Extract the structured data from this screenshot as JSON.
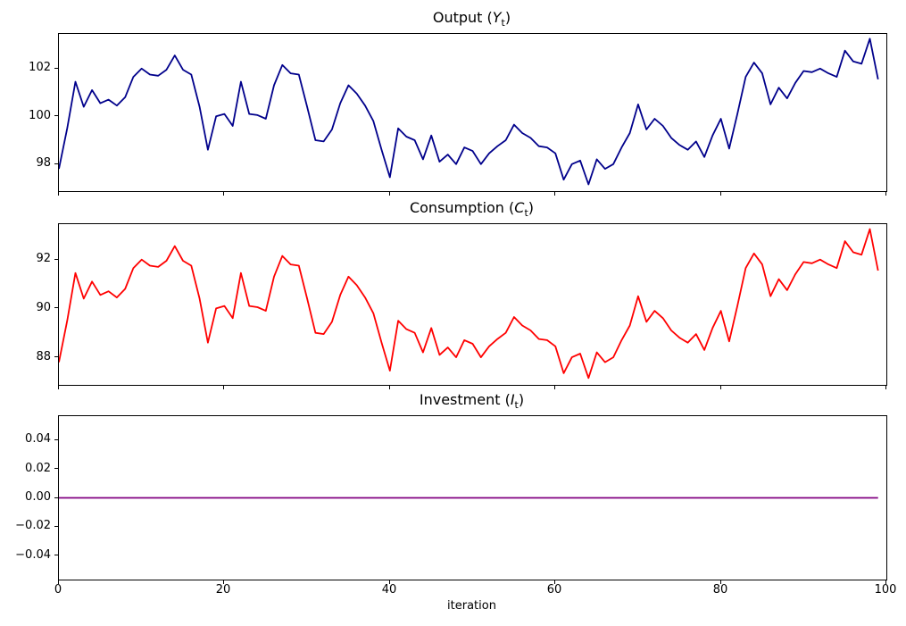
{
  "figure": {
    "background": "#ffffff",
    "xlabel": "iteration",
    "xlim": [
      0,
      100
    ],
    "x_ticks": [
      {
        "value": 0,
        "label": "0"
      },
      {
        "value": 20,
        "label": "20"
      },
      {
        "value": 40,
        "label": "40"
      },
      {
        "value": 60,
        "label": "60"
      },
      {
        "value": 80,
        "label": "80"
      },
      {
        "value": 100,
        "label": "100"
      }
    ],
    "grid": false,
    "legend": "none"
  },
  "chart_data": [
    {
      "id": "output",
      "type": "line",
      "title_prefix": "Output (",
      "title_symbol": "Y",
      "title_subscript": "t",
      "title_suffix": ")",
      "color": "#00008b",
      "x_start": 0,
      "x_step": 1,
      "ylim": [
        96.87,
        103.45
      ],
      "y_ticks": [
        {
          "value": 98,
          "label": "98"
        },
        {
          "value": 100,
          "label": "100"
        },
        {
          "value": 102,
          "label": "102"
        }
      ],
      "values": [
        97.8,
        99.5,
        101.45,
        100.4,
        101.1,
        100.55,
        100.7,
        100.45,
        100.8,
        101.65,
        102.0,
        101.75,
        101.7,
        101.95,
        102.55,
        101.95,
        101.75,
        100.4,
        98.6,
        100.0,
        100.1,
        99.6,
        101.45,
        100.1,
        100.05,
        99.9,
        101.3,
        102.15,
        101.8,
        101.75,
        100.4,
        99.0,
        98.95,
        99.45,
        100.55,
        101.3,
        100.95,
        100.45,
        99.8,
        98.6,
        97.45,
        99.5,
        99.15,
        99.0,
        98.2,
        99.2,
        98.1,
        98.4,
        98.0,
        98.7,
        98.55,
        98.0,
        98.45,
        98.75,
        99.0,
        99.65,
        99.3,
        99.1,
        98.75,
        98.7,
        98.45,
        97.35,
        98.0,
        98.15,
        97.15,
        98.2,
        97.8,
        98.0,
        98.7,
        99.3,
        100.5,
        99.45,
        99.9,
        99.6,
        99.1,
        98.8,
        98.6,
        98.95,
        98.3,
        99.2,
        99.9,
        98.65,
        100.1,
        101.65,
        102.25,
        101.8,
        100.5,
        101.2,
        100.75,
        101.4,
        101.9,
        101.85,
        102.0,
        101.8,
        101.65,
        102.75,
        102.3,
        102.2,
        103.25,
        101.55
      ]
    },
    {
      "id": "consumption",
      "type": "line",
      "title_prefix": "Consumption (",
      "title_symbol": "C",
      "title_subscript": "t",
      "title_suffix": ")",
      "color": "#ff0000",
      "x_start": 0,
      "x_step": 1,
      "ylim": [
        86.87,
        93.45
      ],
      "y_ticks": [
        {
          "value": 88,
          "label": "88"
        },
        {
          "value": 90,
          "label": "90"
        },
        {
          "value": 92,
          "label": "92"
        }
      ],
      "values": [
        87.8,
        89.5,
        91.45,
        90.4,
        91.1,
        90.55,
        90.7,
        90.45,
        90.8,
        91.65,
        92.0,
        91.75,
        91.7,
        91.95,
        92.55,
        91.95,
        91.75,
        90.4,
        88.6,
        90.0,
        90.1,
        89.6,
        91.45,
        90.1,
        90.05,
        89.9,
        91.3,
        92.15,
        91.8,
        91.75,
        90.4,
        89.0,
        88.95,
        89.45,
        90.55,
        91.3,
        90.95,
        90.45,
        89.8,
        88.6,
        87.45,
        89.5,
        89.15,
        89.0,
        88.2,
        89.2,
        88.1,
        88.4,
        88.0,
        88.7,
        88.55,
        88.0,
        88.45,
        88.75,
        89.0,
        89.65,
        89.3,
        89.1,
        88.75,
        88.7,
        88.45,
        87.35,
        88.0,
        88.15,
        87.15,
        88.2,
        87.8,
        88.0,
        88.7,
        89.3,
        90.5,
        89.45,
        89.9,
        89.6,
        89.1,
        88.8,
        88.6,
        88.95,
        88.3,
        89.2,
        89.9,
        88.65,
        90.1,
        91.65,
        92.25,
        91.8,
        90.5,
        91.2,
        90.75,
        91.4,
        91.9,
        91.85,
        92.0,
        91.8,
        91.65,
        92.75,
        92.3,
        92.2,
        93.25,
        91.55
      ]
    },
    {
      "id": "investment",
      "type": "line",
      "title_prefix": "Investment (",
      "title_symbol": "I",
      "title_subscript": "t",
      "title_suffix": ")",
      "color": "#800080",
      "x_start": 0,
      "x_step": 1,
      "n_points": 100,
      "constant_value": 0.0,
      "ylim": [
        -0.0565,
        0.0565
      ],
      "y_ticks": [
        {
          "value": -0.04,
          "label": "−0.04"
        },
        {
          "value": -0.02,
          "label": "−0.02"
        },
        {
          "value": 0.0,
          "label": "0.00"
        },
        {
          "value": 0.02,
          "label": "0.02"
        },
        {
          "value": 0.04,
          "label": "0.04"
        }
      ]
    }
  ]
}
